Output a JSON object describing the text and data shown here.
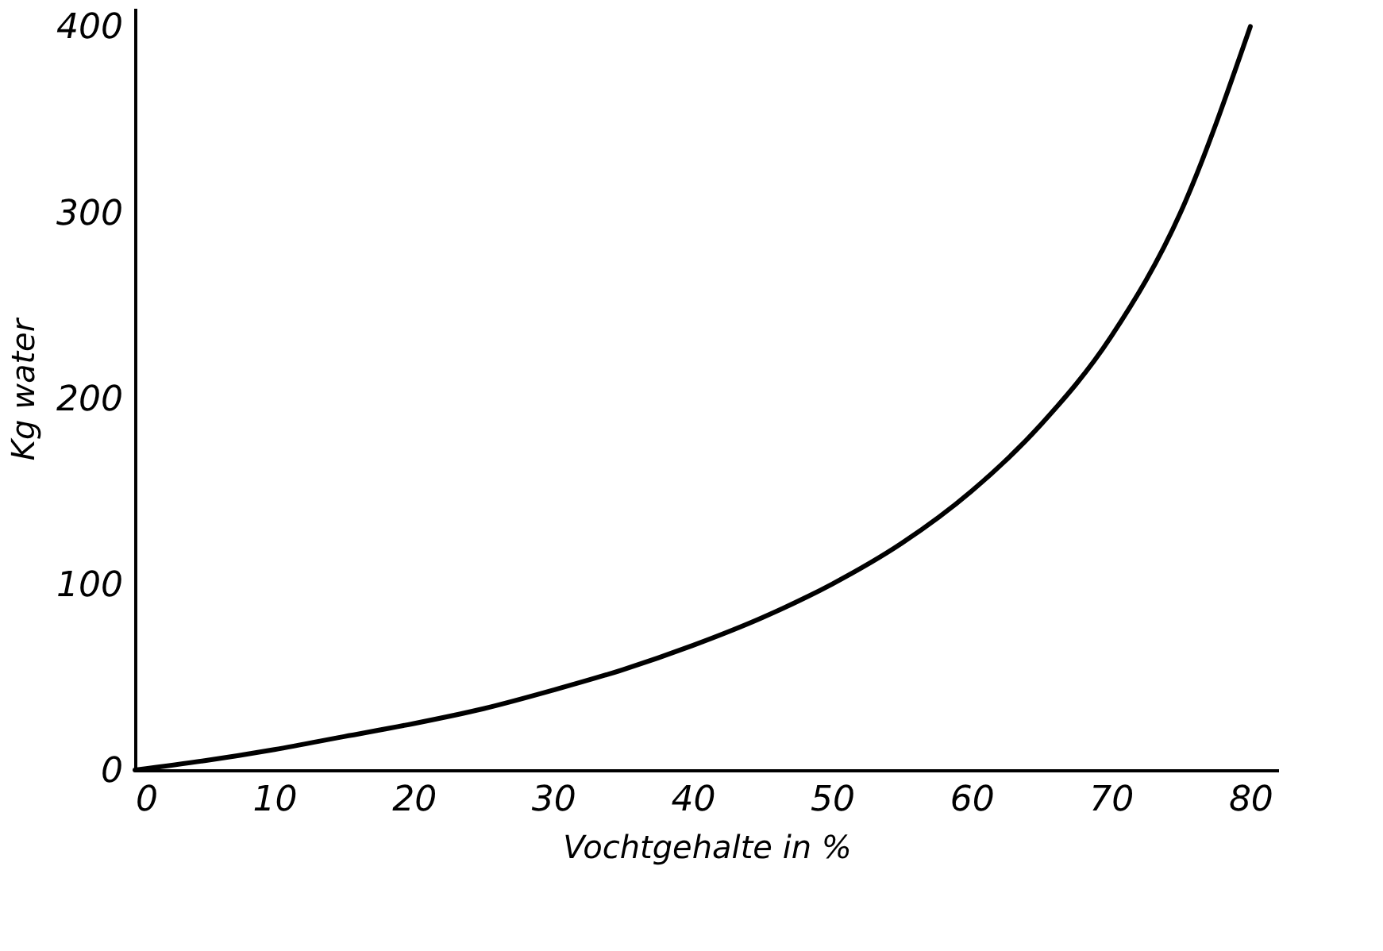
{
  "chart_data": {
    "type": "line",
    "xlabel": "Vochtgehalte in %",
    "ylabel": "Kg water",
    "x": [
      0,
      5,
      10,
      15,
      20,
      25,
      30,
      35,
      40,
      45,
      50,
      55,
      60,
      65,
      70,
      75,
      80
    ],
    "series": [
      {
        "color": "#000000",
        "values": [
          0,
          5,
          11,
          18,
          25,
          33,
          43,
          54,
          67,
          82,
          100,
          122,
          150,
          186,
          233,
          300,
          400
        ]
      }
    ],
    "xlim": [
      0,
      82
    ],
    "ylim": [
      0,
      410
    ],
    "xticks": [
      0,
      10,
      20,
      30,
      40,
      50,
      60,
      70,
      80
    ],
    "yticks": [
      0,
      100,
      200,
      300,
      400
    ],
    "grid": false,
    "marker": "none",
    "line_style": "solid"
  }
}
